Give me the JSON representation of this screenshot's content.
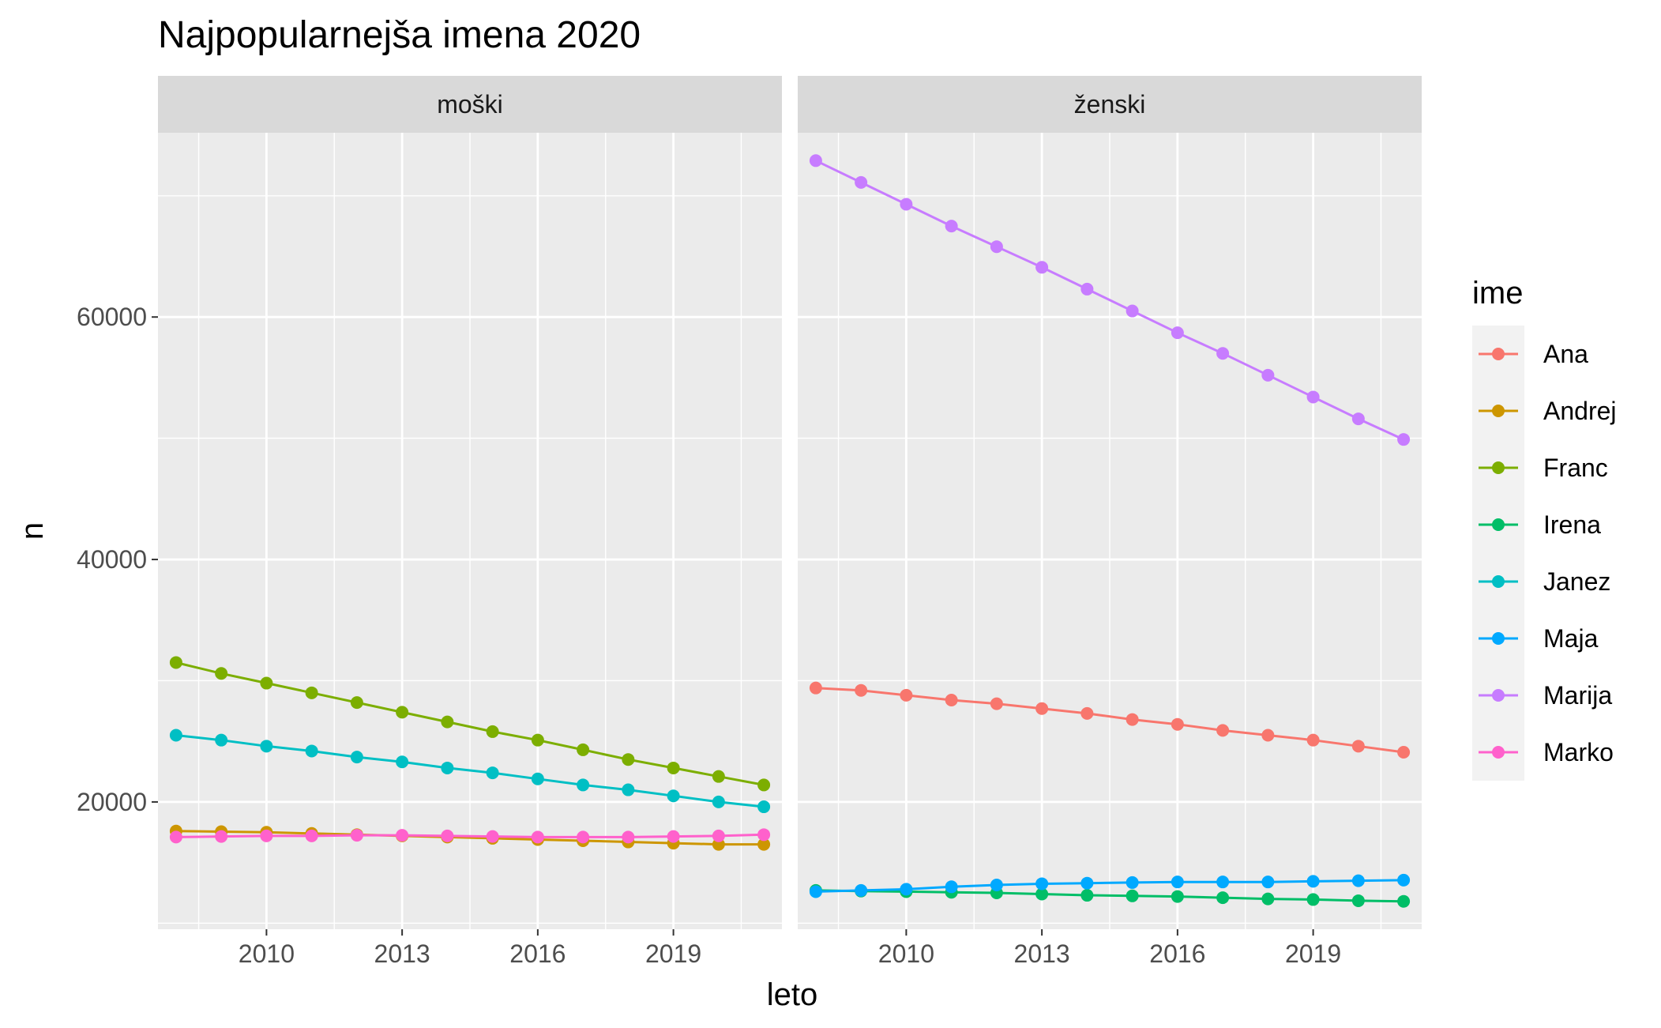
{
  "chart_data": {
    "type": "line",
    "title": "Najpopularnejša imena 2020",
    "xlabel": "leto",
    "ylabel": "n",
    "facets": [
      "moški",
      "ženski"
    ],
    "x": [
      2008,
      2009,
      2010,
      2011,
      2012,
      2013,
      2014,
      2015,
      2016,
      2017,
      2018,
      2019,
      2020,
      2021
    ],
    "xlim": [
      2007.6,
      2021.4
    ],
    "ylim": [
      9500,
      75200
    ],
    "x_ticks": [
      2010,
      2013,
      2016,
      2019
    ],
    "y_ticks": [
      20000,
      40000,
      60000
    ],
    "x_tick_labels": [
      "2010",
      "2013",
      "2016",
      "2019"
    ],
    "y_tick_labels": [
      "20000",
      "40000",
      "60000"
    ],
    "grid": true,
    "legend": {
      "title": "ime",
      "position": "right"
    },
    "series": [
      {
        "name": "Ana",
        "facet": "ženski",
        "color": "#F8766D",
        "values": [
          29400,
          29200,
          28800,
          28400,
          28100,
          27700,
          27300,
          26800,
          26400,
          25900,
          25500,
          25100,
          24600,
          24100
        ]
      },
      {
        "name": "Andrej",
        "facet": "moški",
        "color": "#CD9600",
        "values": [
          17600,
          17550,
          17500,
          17400,
          17300,
          17200,
          17100,
          17000,
          16900,
          16800,
          16700,
          16600,
          16500,
          16500
        ]
      },
      {
        "name": "Franc",
        "facet": "moški",
        "color": "#7CAE00",
        "values": [
          31500,
          30600,
          29800,
          29000,
          28200,
          27400,
          26600,
          25800,
          25100,
          24300,
          23500,
          22800,
          22100,
          21400
        ]
      },
      {
        "name": "Irena",
        "facet": "ženski",
        "color": "#00BE67",
        "values": [
          12700,
          12650,
          12600,
          12550,
          12500,
          12400,
          12300,
          12250,
          12200,
          12100,
          12000,
          11950,
          11850,
          11800
        ]
      },
      {
        "name": "Janez",
        "facet": "moški",
        "color": "#00BFC4",
        "values": [
          25500,
          25100,
          24600,
          24200,
          23700,
          23300,
          22800,
          22400,
          21900,
          21400,
          21000,
          20500,
          20000,
          19600
        ]
      },
      {
        "name": "Maja",
        "facet": "ženski",
        "color": "#00A9FF",
        "values": [
          12600,
          12700,
          12800,
          13000,
          13150,
          13250,
          13300,
          13350,
          13400,
          13400,
          13400,
          13450,
          13500,
          13550
        ]
      },
      {
        "name": "Marija",
        "facet": "ženski",
        "color": "#C77CFF",
        "values": [
          72900,
          71100,
          69300,
          67500,
          65800,
          64100,
          62300,
          60500,
          58700,
          57000,
          55200,
          53400,
          51600,
          49900
        ]
      },
      {
        "name": "Marko",
        "facet": "moški",
        "color": "#FF61CC",
        "values": [
          17100,
          17150,
          17200,
          17200,
          17250,
          17250,
          17200,
          17150,
          17100,
          17100,
          17100,
          17150,
          17200,
          17300
        ]
      }
    ]
  },
  "style": {
    "panel_background": "#EBEBEB",
    "strip_background": "#D9D9D9",
    "grid_color": "#FFFFFF",
    "text_color": "#1A1A1A",
    "tick_text_color": "#4D4D4D"
  }
}
